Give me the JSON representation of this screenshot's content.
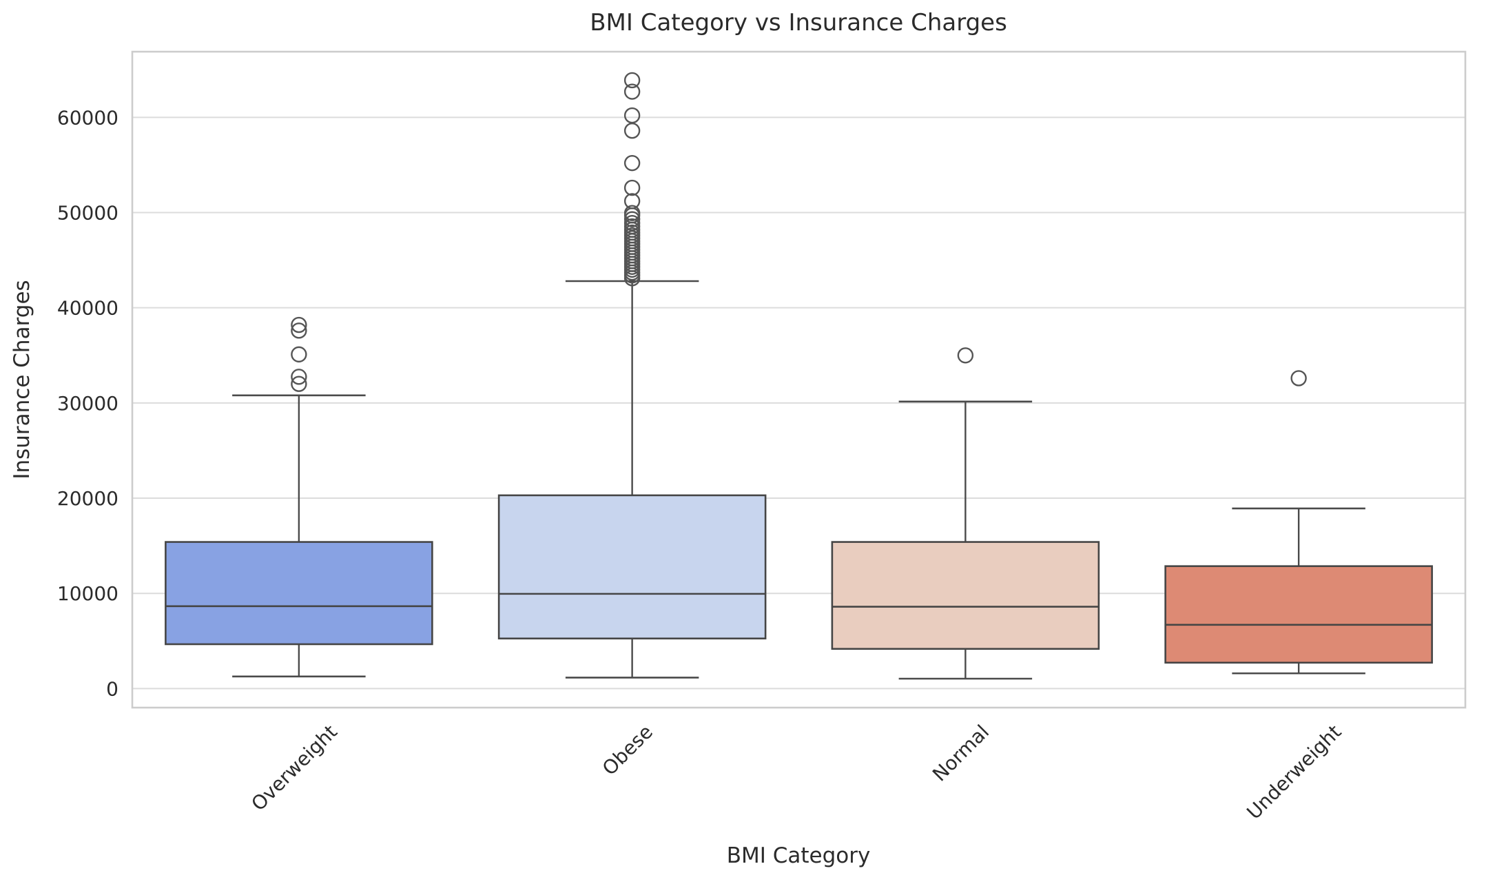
{
  "figure": {
    "title": "BMI Category vs Insurance Charges",
    "xlabel": "BMI Category",
    "ylabel": "Insurance Charges"
  },
  "chart_data": {
    "type": "boxplot",
    "title": "BMI Category vs Insurance Charges",
    "xlabel": "BMI Category",
    "ylabel": "Insurance Charges",
    "categories": [
      "Overweight",
      "Obese",
      "Normal",
      "Underweight"
    ],
    "ylim": [
      -2000,
      66900
    ],
    "yticks": [
      0,
      10000,
      20000,
      30000,
      40000,
      50000,
      60000
    ],
    "ytick_labels": [
      "0",
      "10000",
      "20000",
      "30000",
      "40000",
      "50000",
      "60000"
    ],
    "grid": "horizontal",
    "legend": "none",
    "series": [
      {
        "name": "Overweight",
        "fill_color": "#88a2e3",
        "whisker_low": 1270,
        "q1": 4660,
        "median": 8650,
        "q3": 15400,
        "whisker_high": 30800,
        "outliers": [
          32000,
          32750,
          35100,
          37600,
          38200
        ]
      },
      {
        "name": "Obese",
        "fill_color": "#c8d5ee",
        "whisker_low": 1150,
        "q1": 5260,
        "median": 9950,
        "q3": 20300,
        "whisker_high": 42800,
        "outliers": [
          43100,
          43400,
          43700,
          44000,
          44300,
          44600,
          44900,
          45200,
          45500,
          45800,
          46100,
          46400,
          46700,
          47000,
          47300,
          47600,
          47900,
          48200,
          48550,
          48900,
          49300,
          49700,
          49950,
          51200,
          52600,
          55200,
          58600,
          60200,
          62700,
          63900
        ]
      },
      {
        "name": "Normal",
        "fill_color": "#e9cdbf",
        "whisker_low": 1040,
        "q1": 4170,
        "median": 8600,
        "q3": 15400,
        "whisker_high": 30150,
        "outliers": [
          35000
        ]
      },
      {
        "name": "Underweight",
        "fill_color": "#dd8a74",
        "whisker_low": 1600,
        "q1": 2720,
        "median": 6700,
        "q3": 12860,
        "whisker_high": 18920,
        "outliers": [
          32600
        ]
      }
    ]
  },
  "style": {
    "background": "#ffffff",
    "grid_color": "#dcdcdc",
    "spine_color": "#cccccc",
    "box_edge_color": "#454545",
    "whisker_color": "#4a4a4a",
    "outlier_stroke": "#555555",
    "text_color": "#2b2b2b"
  }
}
